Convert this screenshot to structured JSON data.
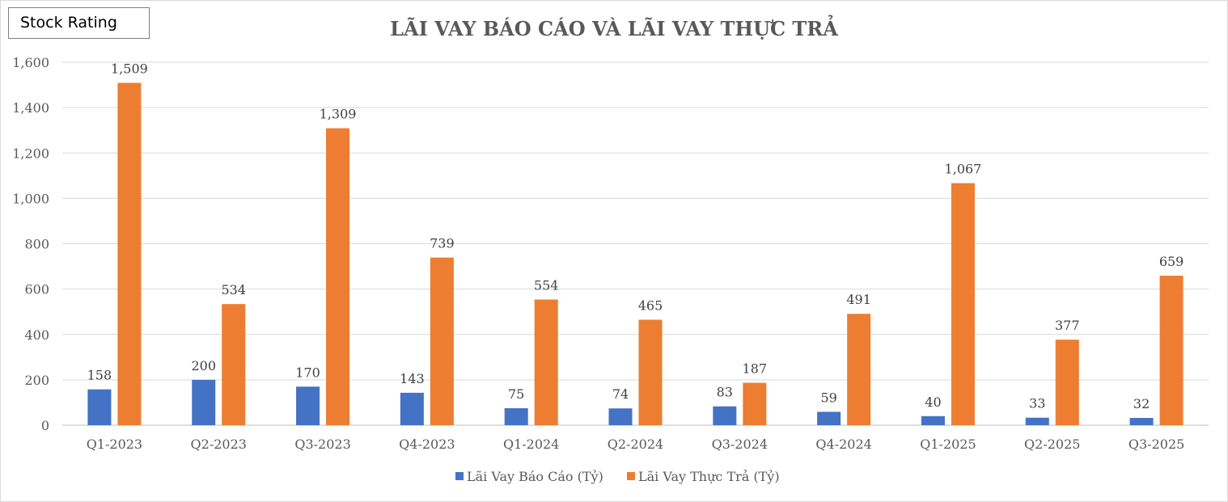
{
  "badge": {
    "label": "Stock Rating"
  },
  "chart_data": {
    "type": "bar",
    "title": "LÃI VAY BÁO CÁO VÀ LÃI VAY THỰC TRẢ",
    "xlabel": "",
    "ylabel": "",
    "ylim": [
      0,
      1600
    ],
    "yticks": [
      0,
      200,
      400,
      600,
      800,
      1000,
      1200,
      1400,
      1600
    ],
    "ytick_labels": [
      "0",
      "200",
      "400",
      "600",
      "800",
      "1,000",
      "1,200",
      "1,400",
      "1,600"
    ],
    "grid": true,
    "legend_position": "bottom",
    "categories": [
      "Q1-2023",
      "Q2-2023",
      "Q3-2023",
      "Q4-2023",
      "Q1-2024",
      "Q2-2024",
      "Q3-2024",
      "Q4-2024",
      "Q1-2025",
      "Q2-2025",
      "Q3-2025"
    ],
    "series": [
      {
        "name": "Lãi Vay Báo Cáo (Tỷ)",
        "color": "#4472c4",
        "values": [
          158,
          200,
          170,
          143,
          75,
          74,
          83,
          59,
          40,
          33,
          32
        ],
        "labels": [
          "158",
          "200",
          "170",
          "143",
          "75",
          "74",
          "83",
          "59",
          "40",
          "33",
          "32"
        ]
      },
      {
        "name": "Lãi Vay Thực Trả (Tỷ)",
        "color": "#ed7d31",
        "values": [
          1509,
          534,
          1309,
          739,
          554,
          465,
          187,
          491,
          1067,
          377,
          659
        ],
        "labels": [
          "1,509",
          "534",
          "1,309",
          "739",
          "554",
          "465",
          "187",
          "491",
          "1,067",
          "377",
          "659"
        ]
      }
    ]
  }
}
